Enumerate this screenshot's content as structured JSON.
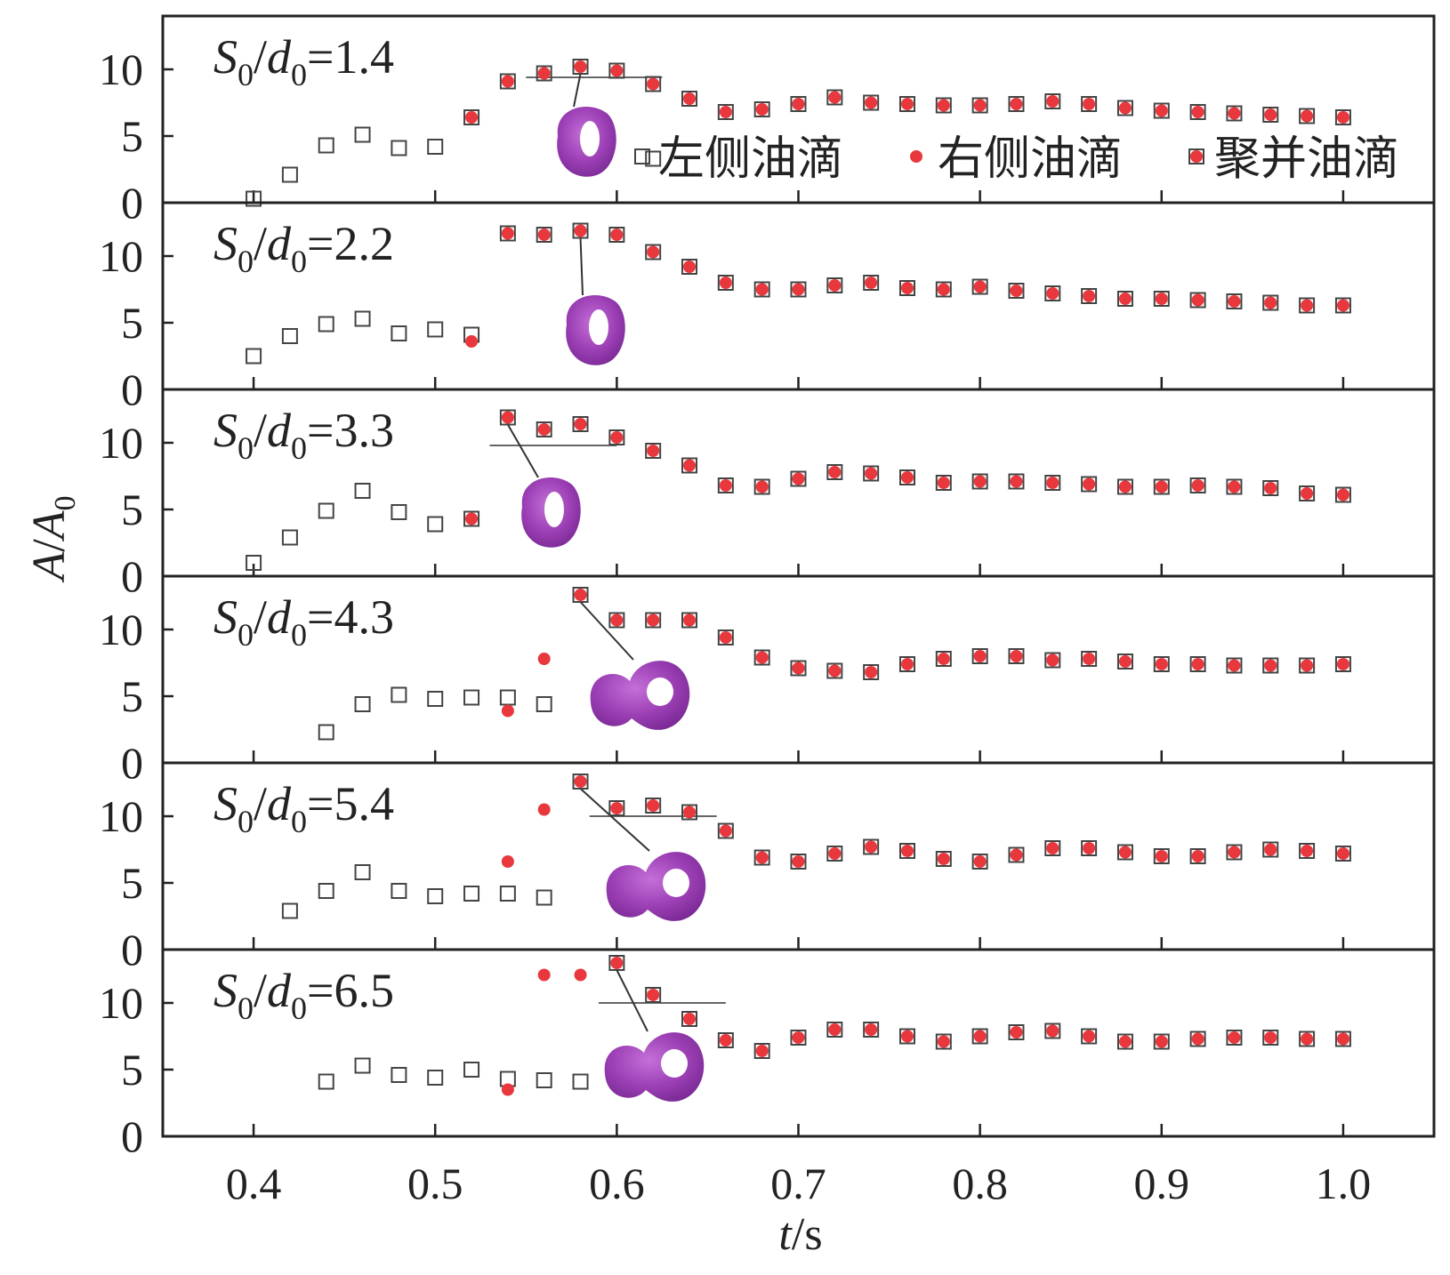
{
  "chart_data": {
    "type": "scatter",
    "xlabel": {
      "italic": "t",
      "rest": "/s"
    },
    "ylabel": {
      "italic1": "A",
      "mid": "/",
      "italic2": "A",
      "sub": "0"
    },
    "xlim": [
      0.35,
      1.05
    ],
    "ylim": [
      0,
      14
    ],
    "xticks": [
      "0.4",
      "0.5",
      "0.6",
      "0.7",
      "0.8",
      "0.9",
      "1.0"
    ],
    "yticks": [
      "0",
      "5",
      "10"
    ],
    "legend": {
      "placement": "top-right of first panel",
      "entries": [
        "左侧油滴",
        "右侧油滴",
        "聚并油滴"
      ]
    },
    "series_styles": {
      "left": {
        "marker": "open-square",
        "color": "#444444"
      },
      "right": {
        "marker": "filled-circle",
        "color": "#e8383d"
      },
      "merged": {
        "marker": "square-with-red-dot",
        "color": "#e8383d",
        "edge": "#444444"
      }
    },
    "panels": [
      {
        "label": {
          "s": "S",
          "ssub": "0",
          "slash": "/",
          "d": "d",
          "dsub": "0",
          "eq": "=1.4"
        },
        "left": [
          [
            0.4,
            0.3
          ],
          [
            0.42,
            2.1
          ],
          [
            0.44,
            4.3
          ],
          [
            0.46,
            5.1
          ],
          [
            0.48,
            4.1
          ],
          [
            0.5,
            4.2
          ],
          [
            0.62,
            3.3
          ]
        ],
        "right": [],
        "merged": [
          [
            0.52,
            6.4
          ],
          [
            0.54,
            9.1
          ],
          [
            0.56,
            9.7
          ],
          [
            0.58,
            10.2
          ],
          [
            0.6,
            9.9
          ],
          [
            0.62,
            8.9
          ],
          [
            0.64,
            7.8
          ],
          [
            0.66,
            6.8
          ],
          [
            0.68,
            7.0
          ],
          [
            0.7,
            7.4
          ],
          [
            0.72,
            7.9
          ],
          [
            0.74,
            7.5
          ],
          [
            0.76,
            7.4
          ],
          [
            0.78,
            7.3
          ],
          [
            0.8,
            7.3
          ],
          [
            0.82,
            7.4
          ],
          [
            0.84,
            7.6
          ],
          [
            0.86,
            7.4
          ],
          [
            0.88,
            7.1
          ],
          [
            0.9,
            6.9
          ],
          [
            0.92,
            6.8
          ],
          [
            0.94,
            6.7
          ],
          [
            0.96,
            6.6
          ],
          [
            0.98,
            6.5
          ],
          [
            1.0,
            6.4
          ]
        ]
      },
      {
        "label": {
          "s": "S",
          "ssub": "0",
          "slash": "/",
          "d": "d",
          "dsub": "0",
          "eq": "=2.2"
        },
        "left": [
          [
            0.4,
            2.5
          ],
          [
            0.42,
            4.0
          ],
          [
            0.44,
            4.9
          ],
          [
            0.46,
            5.3
          ],
          [
            0.48,
            4.2
          ],
          [
            0.5,
            4.5
          ],
          [
            0.52,
            4.1
          ]
        ],
        "right": [
          [
            0.52,
            3.6
          ]
        ],
        "merged": [
          [
            0.54,
            11.7
          ],
          [
            0.56,
            11.6
          ],
          [
            0.58,
            11.9
          ],
          [
            0.6,
            11.6
          ],
          [
            0.62,
            10.3
          ],
          [
            0.64,
            9.2
          ],
          [
            0.66,
            8.0
          ],
          [
            0.68,
            7.5
          ],
          [
            0.7,
            7.5
          ],
          [
            0.72,
            7.8
          ],
          [
            0.74,
            8.0
          ],
          [
            0.76,
            7.6
          ],
          [
            0.78,
            7.5
          ],
          [
            0.8,
            7.7
          ],
          [
            0.82,
            7.4
          ],
          [
            0.84,
            7.2
          ],
          [
            0.86,
            7.0
          ],
          [
            0.88,
            6.8
          ],
          [
            0.9,
            6.8
          ],
          [
            0.92,
            6.7
          ],
          [
            0.94,
            6.6
          ],
          [
            0.96,
            6.5
          ],
          [
            0.98,
            6.3
          ],
          [
            1.0,
            6.3
          ]
        ]
      },
      {
        "label": {
          "s": "S",
          "ssub": "0",
          "slash": "/",
          "d": "d",
          "dsub": "0",
          "eq": "=3.3"
        },
        "left": [
          [
            0.4,
            1.0
          ],
          [
            0.42,
            2.9
          ],
          [
            0.44,
            4.9
          ],
          [
            0.46,
            6.4
          ],
          [
            0.48,
            4.8
          ],
          [
            0.5,
            3.9
          ]
        ],
        "right": [],
        "merged": [
          [
            0.52,
            4.3
          ],
          [
            0.54,
            11.9
          ],
          [
            0.56,
            11.0
          ],
          [
            0.58,
            11.4
          ],
          [
            0.6,
            10.4
          ],
          [
            0.62,
            9.4
          ],
          [
            0.64,
            8.3
          ],
          [
            0.66,
            6.8
          ],
          [
            0.68,
            6.7
          ],
          [
            0.7,
            7.3
          ],
          [
            0.72,
            7.8
          ],
          [
            0.74,
            7.7
          ],
          [
            0.76,
            7.4
          ],
          [
            0.78,
            7.0
          ],
          [
            0.8,
            7.1
          ],
          [
            0.82,
            7.1
          ],
          [
            0.84,
            7.0
          ],
          [
            0.86,
            6.9
          ],
          [
            0.88,
            6.7
          ],
          [
            0.9,
            6.7
          ],
          [
            0.92,
            6.8
          ],
          [
            0.94,
            6.7
          ],
          [
            0.96,
            6.6
          ],
          [
            0.98,
            6.2
          ],
          [
            1.0,
            6.1
          ]
        ]
      },
      {
        "label": {
          "s": "S",
          "ssub": "0",
          "slash": "/",
          "d": "d",
          "dsub": "0",
          "eq": "=4.3"
        },
        "left": [
          [
            0.44,
            2.3
          ],
          [
            0.46,
            4.4
          ],
          [
            0.48,
            5.1
          ],
          [
            0.5,
            4.8
          ],
          [
            0.52,
            4.9
          ],
          [
            0.54,
            4.9
          ],
          [
            0.56,
            4.4
          ]
        ],
        "right": [
          [
            0.54,
            3.9
          ],
          [
            0.56,
            7.8
          ]
        ],
        "merged": [
          [
            0.58,
            12.6
          ],
          [
            0.6,
            10.7
          ],
          [
            0.62,
            10.7
          ],
          [
            0.64,
            10.7
          ],
          [
            0.66,
            9.4
          ],
          [
            0.68,
            7.9
          ],
          [
            0.7,
            7.1
          ],
          [
            0.72,
            6.9
          ],
          [
            0.74,
            6.8
          ],
          [
            0.76,
            7.4
          ],
          [
            0.78,
            7.8
          ],
          [
            0.8,
            8.0
          ],
          [
            0.82,
            8.0
          ],
          [
            0.84,
            7.7
          ],
          [
            0.86,
            7.8
          ],
          [
            0.88,
            7.6
          ],
          [
            0.9,
            7.4
          ],
          [
            0.92,
            7.4
          ],
          [
            0.94,
            7.3
          ],
          [
            0.96,
            7.3
          ],
          [
            0.98,
            7.3
          ],
          [
            1.0,
            7.4
          ]
        ]
      },
      {
        "label": {
          "s": "S",
          "ssub": "0",
          "slash": "/",
          "d": "d",
          "dsub": "0",
          "eq": "=5.4"
        },
        "left": [
          [
            0.42,
            2.9
          ],
          [
            0.44,
            4.4
          ],
          [
            0.46,
            5.8
          ],
          [
            0.48,
            4.4
          ],
          [
            0.5,
            4.0
          ],
          [
            0.52,
            4.2
          ],
          [
            0.54,
            4.2
          ],
          [
            0.56,
            3.9
          ]
        ],
        "right": [
          [
            0.54,
            6.6
          ],
          [
            0.56,
            10.5
          ]
        ],
        "merged": [
          [
            0.58,
            12.6
          ],
          [
            0.6,
            10.6
          ],
          [
            0.62,
            10.8
          ],
          [
            0.64,
            10.3
          ],
          [
            0.66,
            8.9
          ],
          [
            0.68,
            6.9
          ],
          [
            0.7,
            6.6
          ],
          [
            0.72,
            7.2
          ],
          [
            0.74,
            7.7
          ],
          [
            0.76,
            7.4
          ],
          [
            0.78,
            6.8
          ],
          [
            0.8,
            6.6
          ],
          [
            0.82,
            7.1
          ],
          [
            0.84,
            7.6
          ],
          [
            0.86,
            7.6
          ],
          [
            0.88,
            7.3
          ],
          [
            0.9,
            7.0
          ],
          [
            0.92,
            7.0
          ],
          [
            0.94,
            7.3
          ],
          [
            0.96,
            7.5
          ],
          [
            0.98,
            7.4
          ],
          [
            1.0,
            7.2
          ]
        ]
      },
      {
        "label": {
          "s": "S",
          "ssub": "0",
          "slash": "/",
          "d": "d",
          "dsub": "0",
          "eq": "=6.5"
        },
        "left": [
          [
            0.44,
            4.1
          ],
          [
            0.46,
            5.3
          ],
          [
            0.48,
            4.6
          ],
          [
            0.5,
            4.4
          ],
          [
            0.52,
            5.0
          ],
          [
            0.54,
            4.3
          ],
          [
            0.56,
            4.2
          ],
          [
            0.58,
            4.1
          ]
        ],
        "right": [
          [
            0.54,
            3.5
          ],
          [
            0.56,
            12.1
          ],
          [
            0.58,
            12.1
          ]
        ],
        "merged": [
          [
            0.6,
            13.0
          ],
          [
            0.62,
            10.6
          ],
          [
            0.64,
            8.8
          ],
          [
            0.66,
            7.2
          ],
          [
            0.68,
            6.4
          ],
          [
            0.7,
            7.4
          ],
          [
            0.72,
            8.0
          ],
          [
            0.74,
            8.0
          ],
          [
            0.76,
            7.5
          ],
          [
            0.78,
            7.1
          ],
          [
            0.8,
            7.5
          ],
          [
            0.82,
            7.8
          ],
          [
            0.84,
            7.9
          ],
          [
            0.86,
            7.5
          ],
          [
            0.88,
            7.1
          ],
          [
            0.9,
            7.1
          ],
          [
            0.92,
            7.3
          ],
          [
            0.94,
            7.4
          ],
          [
            0.96,
            7.4
          ],
          [
            0.98,
            7.3
          ],
          [
            1.0,
            7.3
          ]
        ]
      }
    ]
  },
  "insets": [
    {
      "panel": 0,
      "pointer_from": [
        0.58,
        10.2
      ],
      "ref_line": [
        0.55,
        0.625,
        9.4
      ],
      "shape": "ring"
    },
    {
      "panel": 1,
      "pointer_from": [
        0.58,
        11.9
      ],
      "ref_line": null,
      "shape": "ring"
    },
    {
      "panel": 2,
      "pointer_from": [
        0.54,
        11.9
      ],
      "ref_line": [
        0.53,
        0.6,
        9.8
      ],
      "shape": "ring"
    },
    {
      "panel": 3,
      "pointer_from": [
        0.58,
        12.6
      ],
      "ref_line": null,
      "shape": "double"
    },
    {
      "panel": 4,
      "pointer_from": [
        0.58,
        12.6
      ],
      "ref_line": [
        0.585,
        0.655,
        10.0
      ],
      "shape": "double"
    },
    {
      "panel": 5,
      "pointer_from": [
        0.6,
        13.0
      ],
      "ref_line": [
        0.59,
        0.66,
        10.0
      ],
      "shape": "double"
    }
  ]
}
